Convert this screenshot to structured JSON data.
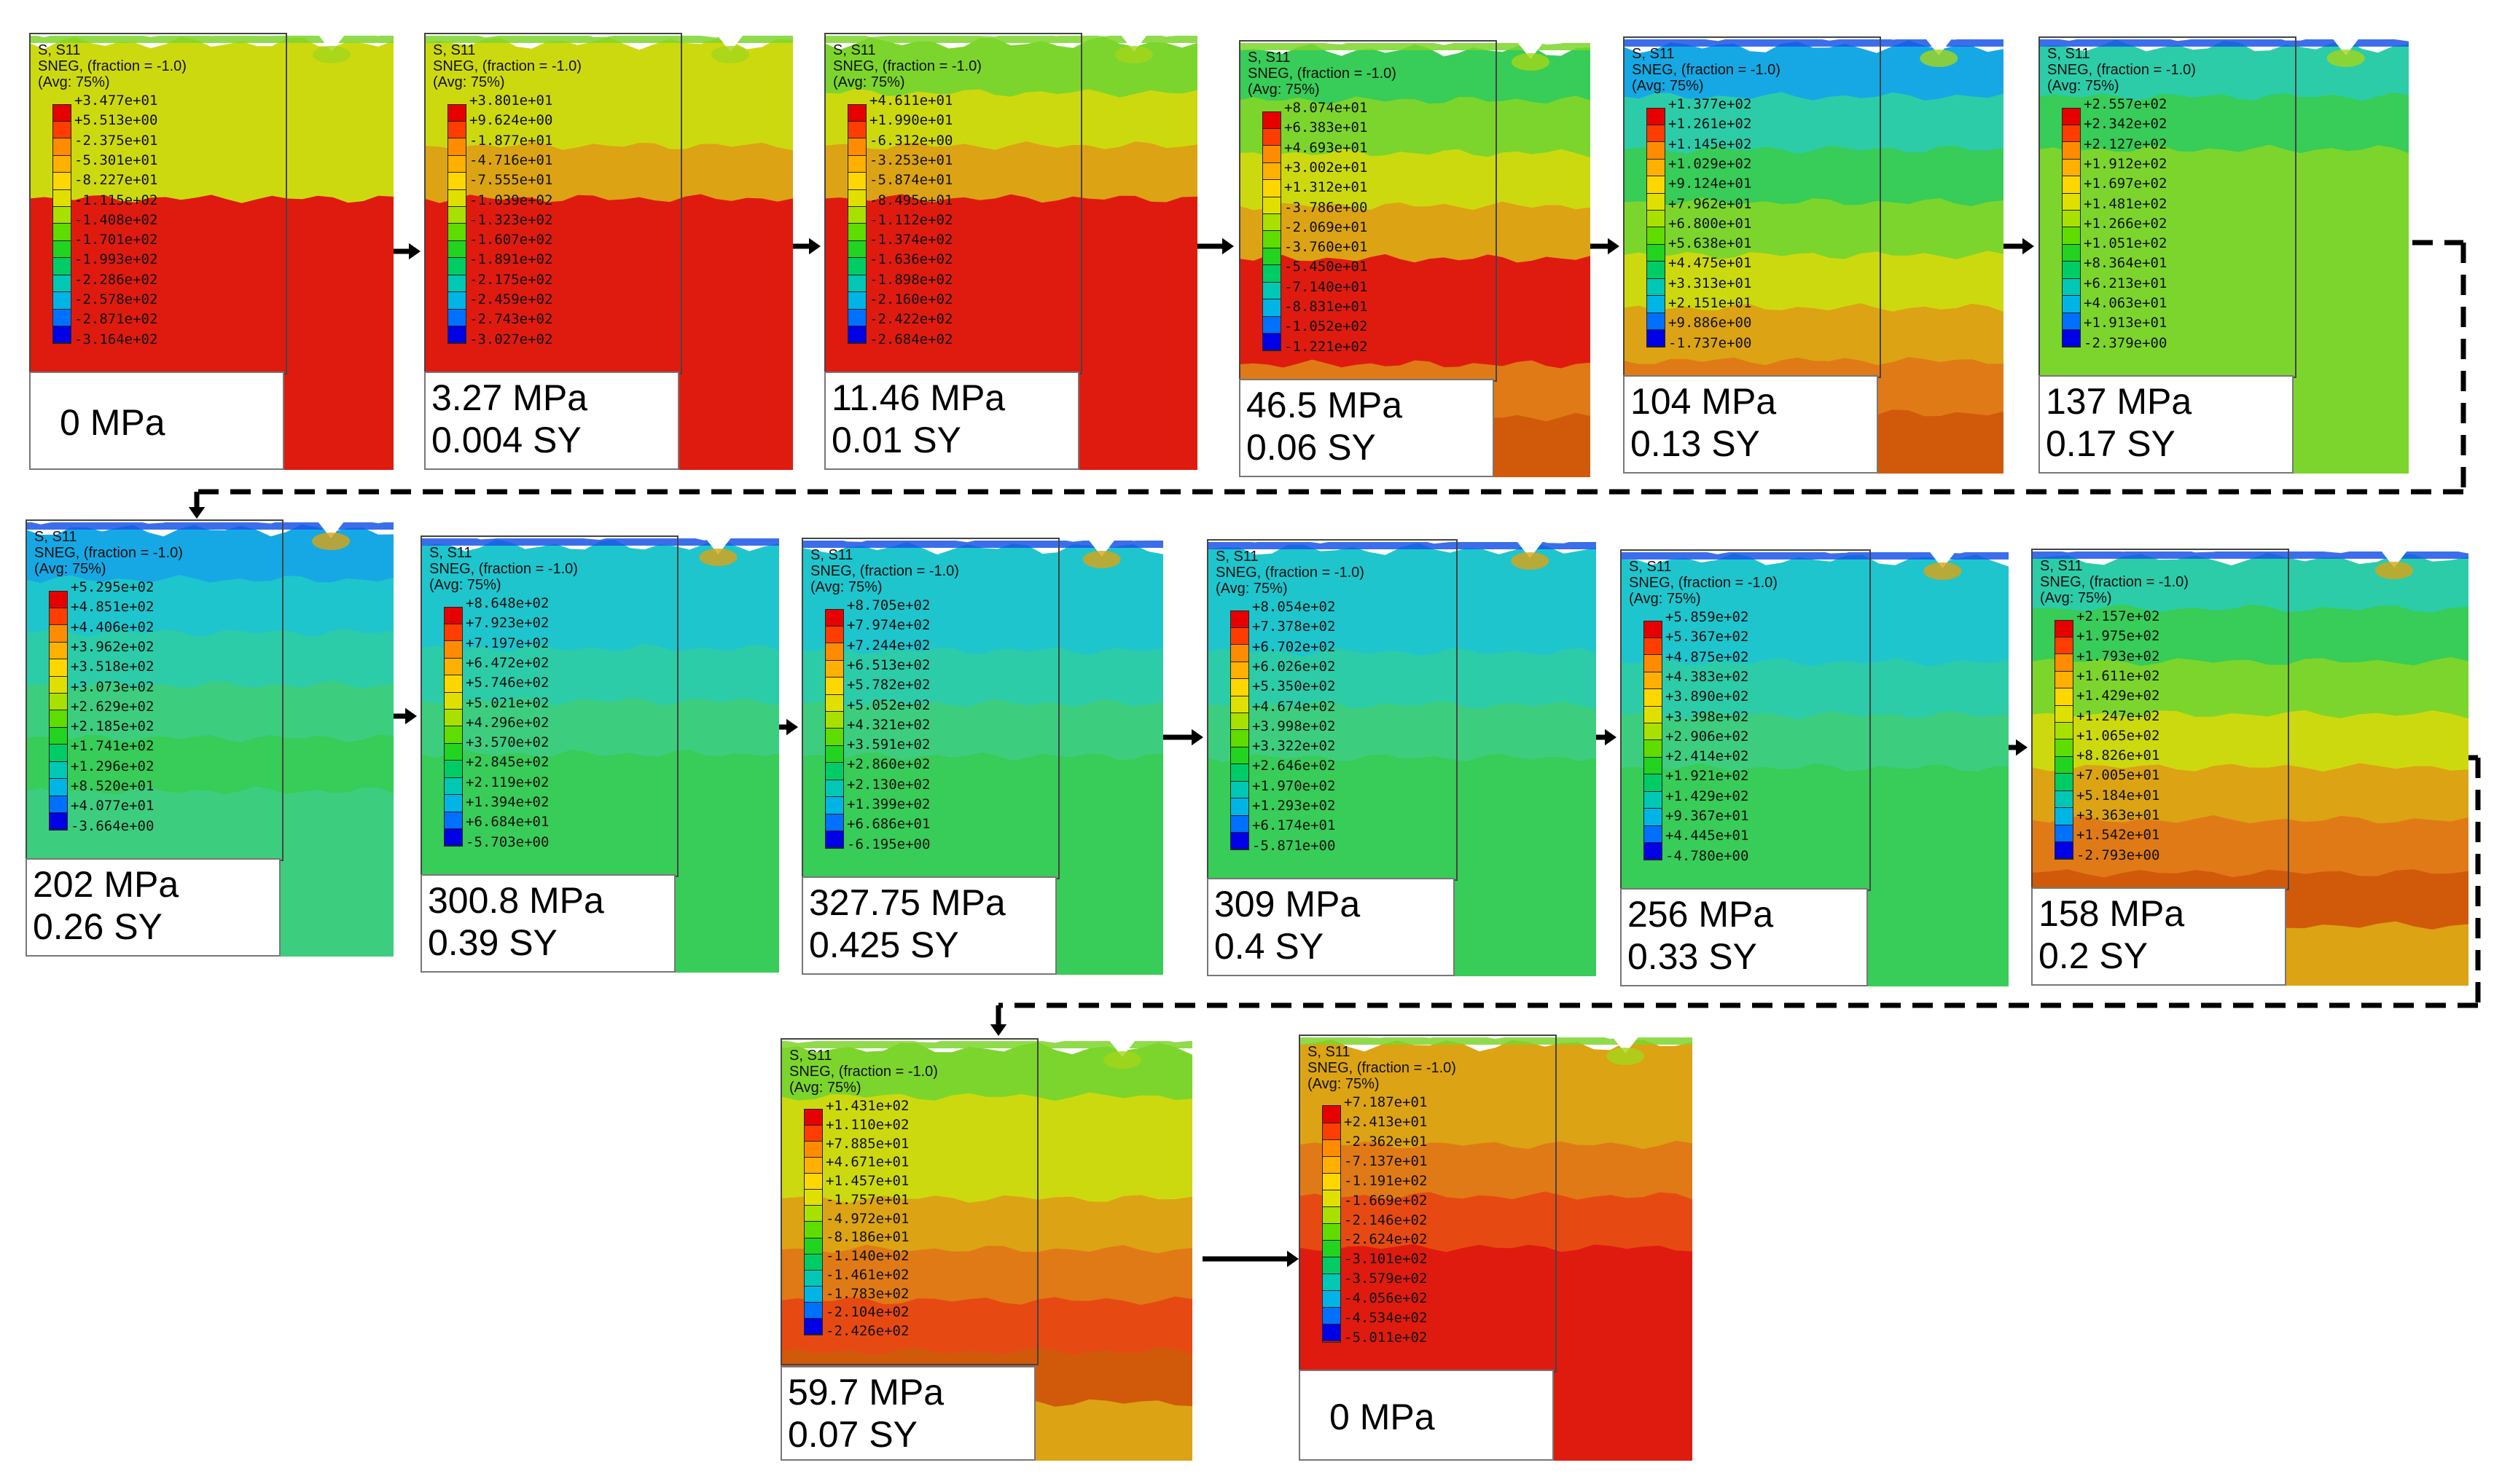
{
  "legend_header": {
    "variable": "S, S11",
    "section": "SNEG, (fraction = -1.0)",
    "averaging": "(Avg: 75%)"
  },
  "legend_colors": [
    "#e60000",
    "#ff3d00",
    "#ff8c00",
    "#ffb000",
    "#ffd700",
    "#e0e000",
    "#a8e000",
    "#5fdc00",
    "#22d320",
    "#00cc66",
    "#00c8b4",
    "#00b4e6",
    "#0070ff",
    "#0000e6"
  ],
  "field_colors": {
    "red": "#df1b0f",
    "red_orange": "#e64a12",
    "orange": "#e07a16",
    "dark_orange": "#d05a0a",
    "amber": "#dca314",
    "yellow": "#cdd90f",
    "yellow_green": "#a2d61a",
    "light_green": "#7cd52c",
    "green": "#38cc58",
    "green_teal": "#3dcd7e",
    "teal": "#2ccca8",
    "cyan": "#1ec5cd",
    "light_blue": "#16a8e4",
    "blue": "#1a55e8"
  },
  "arrow_color": "#000000",
  "panels": [
    {
      "caption": [
        "0 MPa"
      ],
      "legend_values": [
        "+3.477e+01",
        "+5.513e+00",
        "-2.375e+01",
        "-5.301e+01",
        "-8.227e+01",
        "-1.115e+02",
        "-1.408e+02",
        "-1.701e+02",
        "-1.993e+02",
        "-2.286e+02",
        "-2.578e+02",
        "-2.871e+02",
        "-3.164e+02"
      ]
    },
    {
      "caption": [
        "3.27 MPa",
        "0.004 SY"
      ],
      "legend_values": [
        "+3.801e+01",
        "+9.624e+00",
        "-1.877e+01",
        "-4.716e+01",
        "-7.555e+01",
        "-1.039e+02",
        "-1.323e+02",
        "-1.607e+02",
        "-1.891e+02",
        "-2.175e+02",
        "-2.459e+02",
        "-2.743e+02",
        "-3.027e+02"
      ]
    },
    {
      "caption": [
        "11.46 MPa",
        "0.01 SY"
      ],
      "legend_values": [
        "+4.611e+01",
        "+1.990e+01",
        "-6.312e+00",
        "-3.253e+01",
        "-5.874e+01",
        "-8.495e+01",
        "-1.112e+02",
        "-1.374e+02",
        "-1.636e+02",
        "-1.898e+02",
        "-2.160e+02",
        "-2.422e+02",
        "-2.684e+02"
      ]
    },
    {
      "caption": [
        "46.5 MPa",
        "0.06 SY"
      ],
      "legend_values": [
        "+8.074e+01",
        "+6.383e+01",
        "+4.693e+01",
        "+3.002e+01",
        "+1.312e+01",
        "-3.786e+00",
        "-2.069e+01",
        "-3.760e+01",
        "-5.450e+01",
        "-7.140e+01",
        "-8.831e+01",
        "-1.052e+02",
        "-1.221e+02"
      ]
    },
    {
      "caption": [
        "104 MPa",
        "0.13 SY"
      ],
      "legend_values": [
        "+1.377e+02",
        "+1.261e+02",
        "+1.145e+02",
        "+1.029e+02",
        "+9.124e+01",
        "+7.962e+01",
        "+6.800e+01",
        "+5.638e+01",
        "+4.475e+01",
        "+3.313e+01",
        "+2.151e+01",
        "+9.886e+00",
        "-1.737e+00"
      ]
    },
    {
      "caption": [
        "137 MPa",
        "0.17 SY"
      ],
      "legend_values": [
        "+2.557e+02",
        "+2.342e+02",
        "+2.127e+02",
        "+1.912e+02",
        "+1.697e+02",
        "+1.481e+02",
        "+1.266e+02",
        "+1.051e+02",
        "+8.364e+01",
        "+6.213e+01",
        "+4.063e+01",
        "+1.913e+01",
        "-2.379e+00"
      ]
    },
    {
      "caption": [
        "202 MPa",
        "0.26 SY"
      ],
      "legend_values": [
        "+5.295e+02",
        "+4.851e+02",
        "+4.406e+02",
        "+3.962e+02",
        "+3.518e+02",
        "+3.073e+02",
        "+2.629e+02",
        "+2.185e+02",
        "+1.741e+02",
        "+1.296e+02",
        "+8.520e+01",
        "+4.077e+01",
        "-3.664e+00"
      ]
    },
    {
      "caption": [
        "300.8 MPa",
        "0.39 SY"
      ],
      "legend_values": [
        "+8.648e+02",
        "+7.923e+02",
        "+7.197e+02",
        "+6.472e+02",
        "+5.746e+02",
        "+5.021e+02",
        "+4.296e+02",
        "+3.570e+02",
        "+2.845e+02",
        "+2.119e+02",
        "+1.394e+02",
        "+6.684e+01",
        "-5.703e+00"
      ]
    },
    {
      "caption": [
        "327.75 MPa",
        "0.425 SY"
      ],
      "legend_values": [
        "+8.705e+02",
        "+7.974e+02",
        "+7.244e+02",
        "+6.513e+02",
        "+5.782e+02",
        "+5.052e+02",
        "+4.321e+02",
        "+3.591e+02",
        "+2.860e+02",
        "+2.130e+02",
        "+1.399e+02",
        "+6.686e+01",
        "-6.195e+00"
      ]
    },
    {
      "caption": [
        "309 MPa",
        "0.4 SY"
      ],
      "legend_values": [
        "+8.054e+02",
        "+7.378e+02",
        "+6.702e+02",
        "+6.026e+02",
        "+5.350e+02",
        "+4.674e+02",
        "+3.998e+02",
        "+3.322e+02",
        "+2.646e+02",
        "+1.970e+02",
        "+1.293e+02",
        "+6.174e+01",
        "-5.871e+00"
      ]
    },
    {
      "caption": [
        "256 MPa",
        "0.33 SY"
      ],
      "legend_values": [
        "+5.859e+02",
        "+5.367e+02",
        "+4.875e+02",
        "+4.383e+02",
        "+3.890e+02",
        "+3.398e+02",
        "+2.906e+02",
        "+2.414e+02",
        "+1.921e+02",
        "+1.429e+02",
        "+9.367e+01",
        "+4.445e+01",
        "-4.780e+00"
      ]
    },
    {
      "caption": [
        "158 MPa",
        "0.2 SY"
      ],
      "legend_values": [
        "+2.157e+02",
        "+1.975e+02",
        "+1.793e+02",
        "+1.611e+02",
        "+1.429e+02",
        "+1.247e+02",
        "+1.065e+02",
        "+8.826e+01",
        "+7.005e+01",
        "+5.184e+01",
        "+3.363e+01",
        "+1.542e+01",
        "-2.793e+00"
      ]
    },
    {
      "caption": [
        "59.7 MPa",
        "0.07 SY"
      ],
      "legend_values": [
        "+1.431e+02",
        "+1.110e+02",
        "+7.885e+01",
        "+4.671e+01",
        "+1.457e+01",
        "-1.757e+01",
        "-4.972e+01",
        "-8.186e+01",
        "-1.140e+02",
        "-1.461e+02",
        "-1.783e+02",
        "-2.104e+02",
        "-2.426e+02"
      ]
    },
    {
      "caption": [
        "0 MPa"
      ],
      "legend_values": [
        "+7.187e+01",
        "+2.413e+01",
        "-2.362e+01",
        "-7.137e+01",
        "-1.191e+02",
        "-1.669e+02",
        "-2.146e+02",
        "-2.624e+02",
        "-3.101e+02",
        "-3.579e+02",
        "-4.056e+02",
        "-4.534e+02",
        "-5.011e+02"
      ]
    }
  ]
}
